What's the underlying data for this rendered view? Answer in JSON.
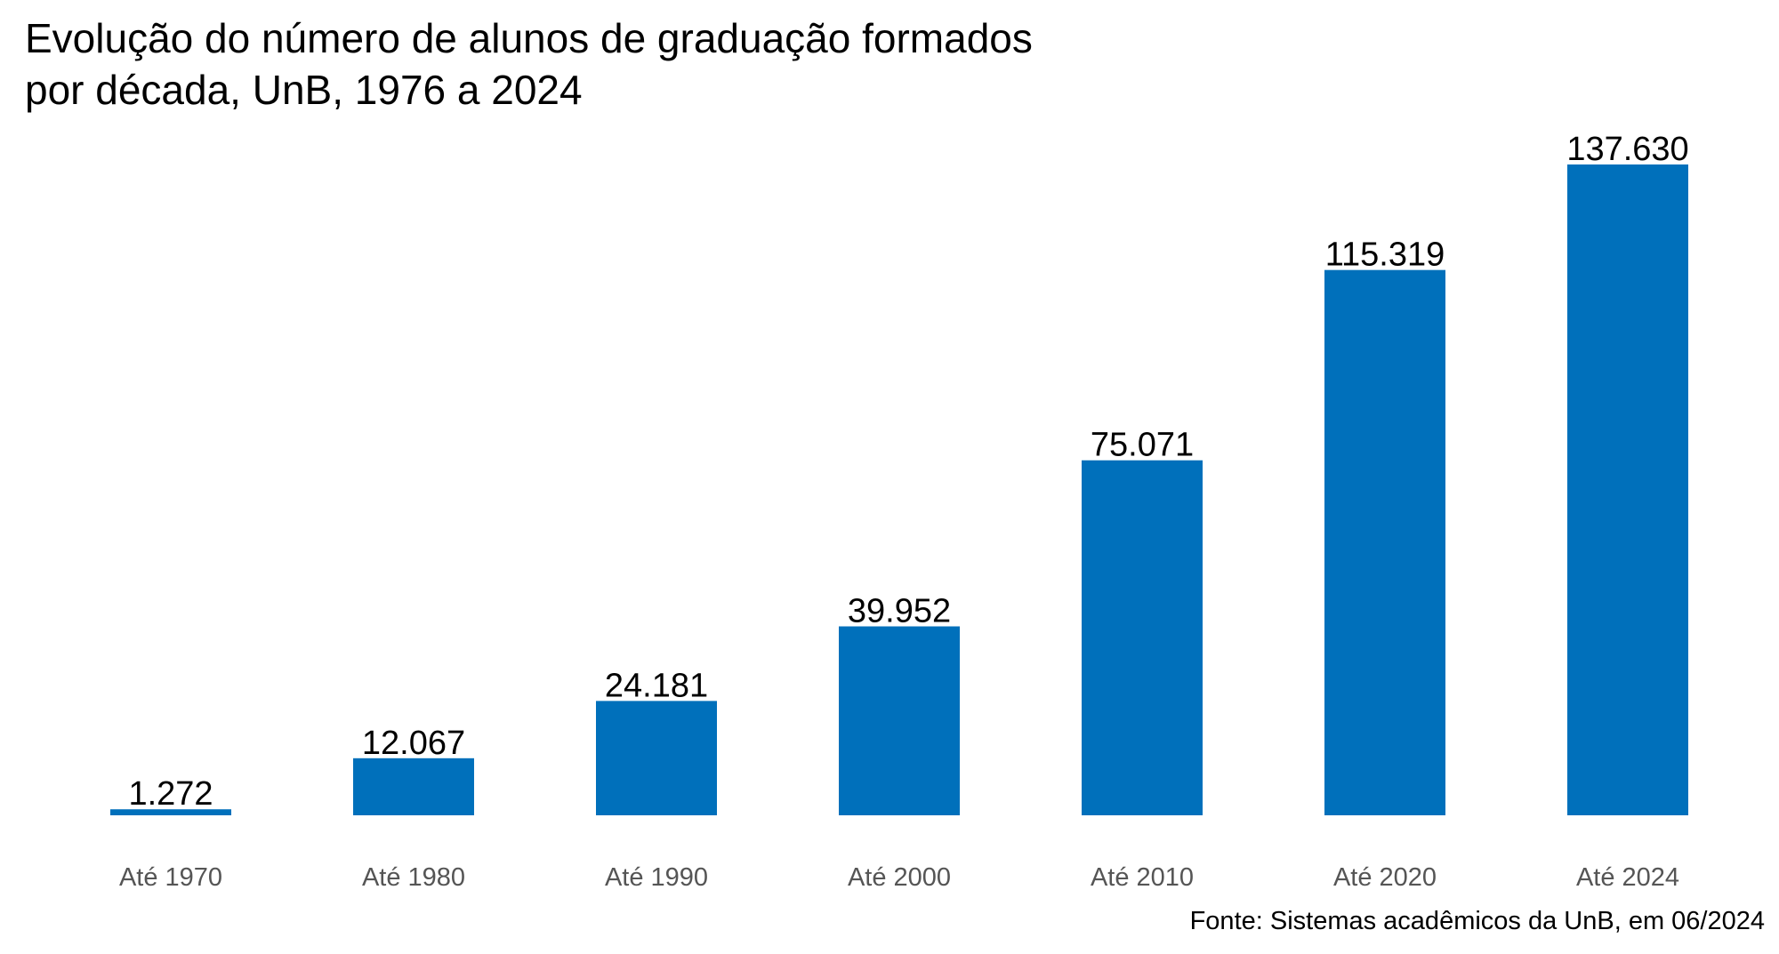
{
  "chart_data": {
    "type": "bar",
    "title_lines": [
      "Evolução do número de alunos de graduação formados",
      "por década, UnB, 1976 a 2024"
    ],
    "categories": [
      "Até 1970",
      "Até 1980",
      "Até 1990",
      "Até 2000",
      "Até 2010",
      "Até 2020",
      "Até 2024"
    ],
    "values": [
      1272,
      12067,
      24181,
      39952,
      75071,
      115319,
      137630
    ],
    "value_labels": [
      "1.272",
      "12.067",
      "24.181",
      "39.952",
      "75.071",
      "115.319",
      "137.630"
    ],
    "ylim": [
      0,
      137630
    ],
    "grid": false,
    "legend": "none",
    "bar_color": "#0070BB",
    "source": "Fonte: Sistemas acadêmicos da UnB, em 06/2024"
  }
}
